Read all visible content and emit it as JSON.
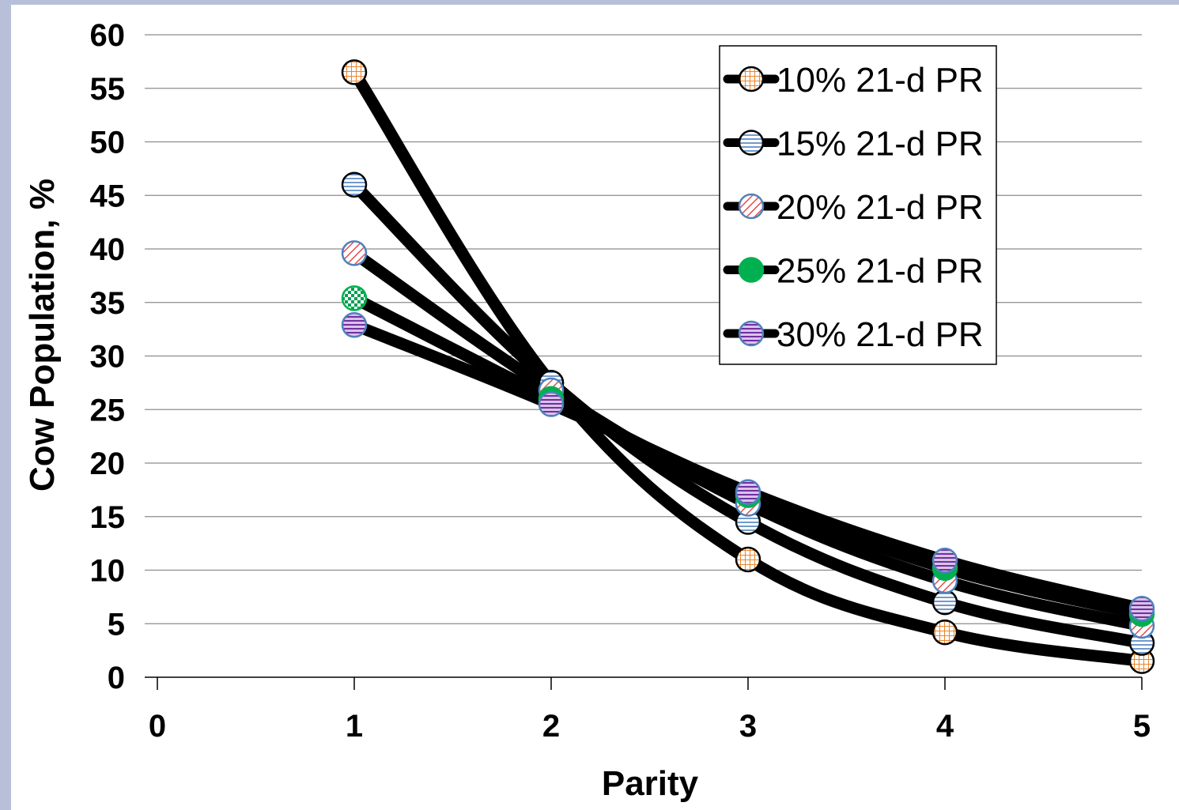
{
  "chart_data": {
    "type": "line",
    "title": "",
    "xlabel": "Parity",
    "ylabel": "Cow Population, %",
    "xlim": [
      0,
      5
    ],
    "ylim": [
      0,
      60
    ],
    "x_ticks": [
      "0",
      "1",
      "2",
      "3",
      "4",
      "5"
    ],
    "y_ticks": [
      "0",
      "5",
      "10",
      "15",
      "20",
      "25",
      "30",
      "35",
      "40",
      "45",
      "50",
      "55",
      "60"
    ],
    "grid": "horizontal",
    "legend_position": "top-right",
    "x": [
      1,
      2,
      3,
      4,
      5
    ],
    "series": [
      {
        "name": "10% 21-d PR",
        "values": [
          56.5,
          27.5,
          11.0,
          4.2,
          1.5
        ],
        "color": "#f0a050",
        "pattern": "grid"
      },
      {
        "name": "15% 21-d PR",
        "values": [
          46.0,
          27.5,
          14.5,
          7.0,
          3.2
        ],
        "color": "#4f81bd",
        "pattern": "horizontal-lines"
      },
      {
        "name": "20% 21-d PR",
        "values": [
          39.6,
          26.8,
          16.2,
          9.0,
          4.8
        ],
        "color": "#e05050",
        "pattern": "diagonal-lines"
      },
      {
        "name": "25% 21-d PR",
        "values": [
          35.4,
          26.0,
          17.0,
          10.2,
          5.9
        ],
        "color": "#00b050",
        "pattern": "solid"
      },
      {
        "name": "30% 21-d PR",
        "values": [
          32.9,
          25.5,
          17.3,
          10.9,
          6.4
        ],
        "color": "#7030a0",
        "pattern": "horizontal-lines"
      }
    ],
    "line_color": "#000000",
    "frame_color": "#b8bfd9"
  }
}
